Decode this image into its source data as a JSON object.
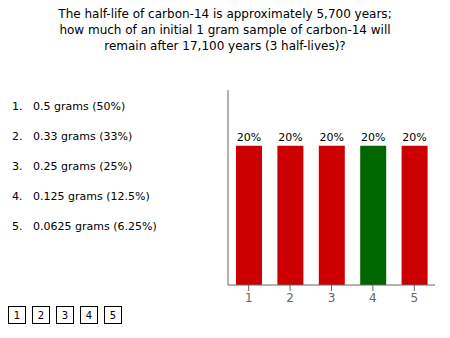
{
  "chart_data": {
    "type": "bar",
    "title": "The half-life of carbon-14 is approximately 5,700 years;\nhow much of an initial 1 gram sample of carbon-14 will\nremain after 17,100 years (3 half-lives)?",
    "categories": [
      1,
      2,
      3,
      4,
      5
    ],
    "values": [
      20,
      20,
      20,
      20,
      20
    ],
    "value_labels": [
      "20%",
      "20%",
      "20%",
      "20%",
      "20%"
    ],
    "colors": [
      "#cc0000",
      "#cc0000",
      "#cc0000",
      "#006600",
      "#cc0000"
    ],
    "ylim": [
      0,
      28
    ],
    "tick_labels": "x",
    "data_labels": true,
    "grid": false,
    "annotations": [
      "1.   0.5 grams (50%)",
      "2.   0.33 grams (33%)",
      "3.   0.25 grams (25%)",
      "4.   0.125 grams (12.5%)",
      "5.   0.0625 grams (6.25%)"
    ],
    "button_labels": [
      "1",
      "2",
      "3",
      "4",
      "5"
    ]
  }
}
